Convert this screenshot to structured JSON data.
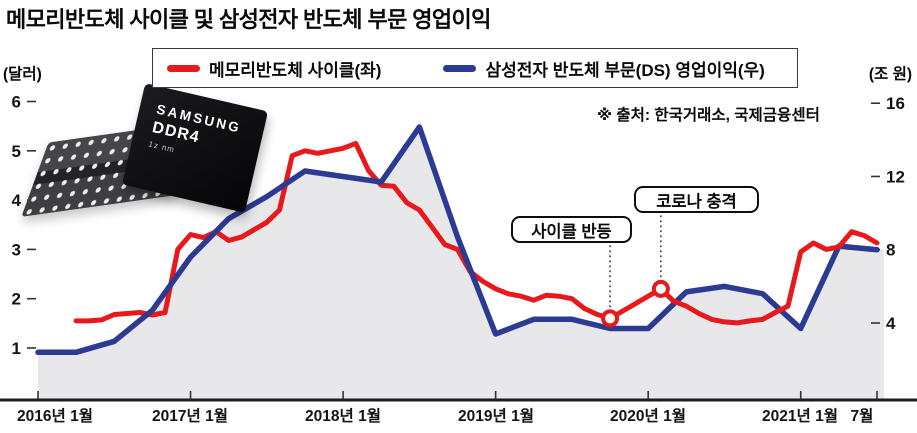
{
  "title": "메모리반도체 사이클 및 삼성전자 반도체 부문 영업이익",
  "legend": {
    "items": [
      {
        "label": "메모리반도체 사이클(좌)",
        "color": "#e8191d"
      },
      {
        "label": "삼성전자 반도체 부문(DS) 영업이익(우)",
        "color": "#2b3a92"
      }
    ]
  },
  "source_note": "※ 출처: 한국거래소, 국제금융센터",
  "axes": {
    "left_unit": "(달러)",
    "right_unit": "(조 원)",
    "left_ticks": [
      6,
      5,
      4,
      3,
      2,
      1
    ],
    "right_ticks": [
      16,
      12,
      8,
      4
    ],
    "x_labels": [
      "2016년 1월",
      "2017년 1월",
      "2018년 1월",
      "2019년 1월",
      "2020년 1월",
      "2021년 1월",
      "7월"
    ]
  },
  "annotations": [
    {
      "label": "사이클 반등",
      "month": 45,
      "value": 1.6
    },
    {
      "label": "코로나 충격",
      "month": 49,
      "value": 2.2
    }
  ],
  "chip_image": {
    "brand": "SAMSUNG",
    "model": "DDR4",
    "process": "1z nm"
  },
  "chart_data": {
    "type": "line",
    "x_start": "2016-01",
    "x_end": "2021-07",
    "x_unit": "months since 2016-01",
    "left_axis": {
      "unit": "달러",
      "range": [
        1,
        6
      ]
    },
    "right_axis": {
      "unit": "조 원",
      "range": [
        4,
        16
      ]
    },
    "grid": false,
    "legend_position": "top",
    "series": [
      {
        "name": "메모리반도체 사이클(좌)",
        "axis": "left",
        "color": "#e8191d",
        "start_month": 3,
        "monthly_values": [
          1.55,
          1.55,
          1.57,
          1.68,
          1.7,
          1.72,
          1.67,
          1.72,
          3.0,
          3.3,
          3.24,
          3.36,
          3.18,
          3.25,
          3.4,
          3.55,
          3.8,
          4.9,
          5.0,
          4.95,
          5.0,
          5.05,
          5.15,
          4.6,
          4.3,
          4.28,
          3.95,
          3.8,
          3.45,
          3.1,
          3.0,
          2.55,
          2.35,
          2.2,
          2.1,
          2.05,
          1.97,
          2.07,
          2.05,
          2.0,
          1.8,
          1.68,
          1.6,
          1.75,
          1.9,
          2.05,
          2.2,
          1.95,
          1.85,
          1.7,
          1.58,
          1.53,
          1.51,
          1.55,
          1.58,
          1.72,
          1.85,
          2.95,
          3.13,
          3.0,
          3.05,
          3.36,
          3.28,
          3.13
        ]
      },
      {
        "name": "삼성전자 반도체 부문(DS) 영업이익(우)",
        "axis": "right",
        "color": "#2b3a92",
        "area_fill": "#e8e8ea",
        "points": [
          [
            0,
            2.4
          ],
          [
            3,
            2.4
          ],
          [
            6,
            3.0
          ],
          [
            9,
            4.7
          ],
          [
            12,
            7.6
          ],
          [
            15,
            9.7
          ],
          [
            18,
            10.9
          ],
          [
            21,
            12.3
          ],
          [
            24,
            12.0
          ],
          [
            27,
            11.7
          ],
          [
            30,
            14.7
          ],
          [
            33,
            8.7
          ],
          [
            36,
            3.4
          ],
          [
            39,
            4.2
          ],
          [
            42,
            4.2
          ],
          [
            45,
            3.7
          ],
          [
            48,
            3.7
          ],
          [
            51,
            5.7
          ],
          [
            54,
            6.0
          ],
          [
            57,
            5.6
          ],
          [
            60,
            3.7
          ],
          [
            63,
            8.2
          ],
          [
            66,
            8.0
          ]
        ]
      }
    ]
  }
}
